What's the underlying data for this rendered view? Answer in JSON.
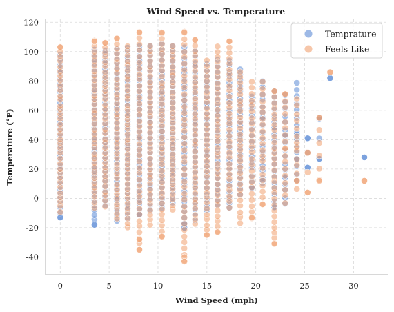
{
  "chart_data": {
    "type": "scatter",
    "title": "Wind Speed vs. Temperature",
    "xlabel": "Wind Speed (mph)",
    "ylabel": "Temperature (°F)",
    "xlim": [
      -1.5,
      33.5
    ],
    "ylim": [
      -52,
      122
    ],
    "xticks": [
      0,
      5,
      10,
      15,
      20,
      25,
      30
    ],
    "yticks": [
      -40,
      -20,
      0,
      20,
      40,
      60,
      80,
      100,
      120
    ],
    "grid": true,
    "legend_position": "top-right",
    "series": [
      {
        "name": "Temprature",
        "color": "#5b8bd6",
        "x_levels": [
          0,
          3.5,
          4.6,
          5.8,
          6.9,
          8.1,
          9.2,
          10.4,
          11.5,
          12.7,
          13.8,
          15.0,
          16.1,
          17.3,
          18.4,
          19.6,
          20.7,
          21.9,
          23.0,
          24.2,
          25.3,
          26.5,
          27.6,
          31.1
        ],
        "y_ranges": [
          [
            -13,
            98
          ],
          [
            -18,
            101
          ],
          [
            -5,
            101
          ],
          [
            -15,
            102
          ],
          [
            -14,
            103
          ],
          [
            -11,
            104
          ],
          [
            -8,
            104
          ],
          [
            -7,
            105
          ],
          [
            -3,
            104
          ],
          [
            -20,
            103
          ],
          [
            -15,
            100
          ],
          [
            -8,
            91
          ],
          [
            -5,
            94
          ],
          [
            -7,
            94
          ],
          [
            3,
            88
          ],
          [
            7,
            70
          ],
          [
            10,
            80
          ],
          [
            -6,
            73
          ],
          [
            -4,
            70
          ],
          [
            12,
            79
          ],
          [
            21,
            41
          ],
          [
            27,
            55
          ],
          [
            82,
            82
          ],
          [
            28,
            28
          ]
        ],
        "points": [
          [
            0,
            -13
          ],
          [
            3.5,
            -18
          ],
          [
            12.7,
            -20
          ],
          [
            12.7,
            -17
          ],
          [
            8.1,
            -11
          ],
          [
            19.6,
            7
          ],
          [
            20.7,
            12
          ],
          [
            21.9,
            -6
          ],
          [
            23.0,
            14
          ],
          [
            23.0,
            43
          ],
          [
            24.2,
            27
          ],
          [
            24.2,
            44
          ],
          [
            25.3,
            41
          ],
          [
            25.3,
            21
          ],
          [
            26.5,
            27
          ],
          [
            26.5,
            54
          ],
          [
            27.6,
            82
          ],
          [
            31.1,
            28
          ],
          [
            20.7,
            55
          ],
          [
            21.9,
            48
          ]
        ]
      },
      {
        "name": "Feels Like",
        "color": "#f0a070",
        "x_levels": [
          0,
          3.5,
          4.6,
          5.8,
          6.9,
          8.1,
          9.2,
          10.4,
          11.5,
          12.7,
          13.8,
          15.0,
          16.1,
          17.3,
          18.4,
          19.6,
          20.7,
          21.9,
          23.0,
          24.2,
          25.3,
          26.5,
          27.6,
          31.1
        ],
        "y_ranges": [
          [
            -9,
            103
          ],
          [
            -6,
            107
          ],
          [
            -5,
            106
          ],
          [
            -14,
            109
          ],
          [
            -20,
            104
          ],
          [
            -35,
            113
          ],
          [
            -18,
            104
          ],
          [
            -26,
            113
          ],
          [
            -8,
            104
          ],
          [
            -43,
            113
          ],
          [
            -18,
            108
          ],
          [
            -25,
            94
          ],
          [
            -23,
            104
          ],
          [
            -6,
            107
          ],
          [
            -17,
            86
          ],
          [
            -13,
            79
          ],
          [
            -4,
            79
          ],
          [
            -31,
            73
          ],
          [
            -3,
            71
          ],
          [
            7,
            68
          ],
          [
            4,
            31
          ],
          [
            12,
            55
          ],
          [
            86,
            86
          ],
          [
            12,
            12
          ]
        ],
        "points": [
          [
            0,
            103
          ],
          [
            3.5,
            107
          ],
          [
            4.6,
            106
          ],
          [
            5.8,
            109
          ],
          [
            8.1,
            113
          ],
          [
            8.1,
            -28
          ],
          [
            8.1,
            -35
          ],
          [
            10.4,
            113
          ],
          [
            10.4,
            -26
          ],
          [
            12.7,
            113
          ],
          [
            12.7,
            -40
          ],
          [
            12.7,
            -43
          ],
          [
            13.8,
            108
          ],
          [
            15.0,
            -25
          ],
          [
            16.1,
            -23
          ],
          [
            17.3,
            107
          ],
          [
            19.6,
            -13
          ],
          [
            20.7,
            -4
          ],
          [
            21.9,
            -31
          ],
          [
            21.9,
            73
          ],
          [
            23.0,
            34
          ],
          [
            23.0,
            71
          ],
          [
            24.2,
            12
          ],
          [
            24.2,
            35
          ],
          [
            25.3,
            4
          ],
          [
            25.3,
            31
          ],
          [
            26.5,
            12
          ],
          [
            26.5,
            55
          ],
          [
            27.6,
            86
          ],
          [
            31.1,
            12
          ]
        ]
      }
    ]
  }
}
